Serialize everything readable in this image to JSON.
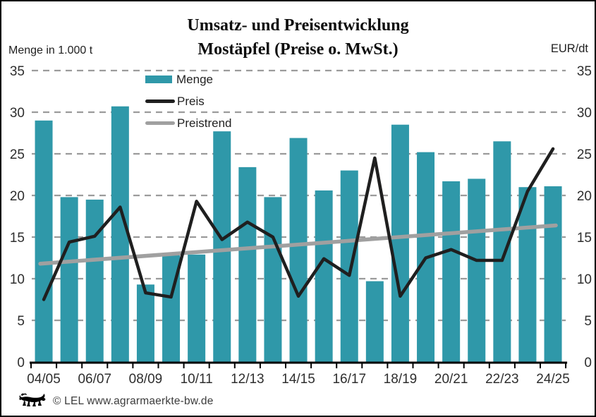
{
  "chart_data": {
    "type": "bar+line",
    "title_line1": "Umsatz- und Preisentwicklung",
    "title_line2": "Mostäpfel (Preise o. MwSt.)",
    "left_axis_label": "Menge in 1.000 t",
    "right_axis_label": "EUR/dt",
    "categories": [
      "04/05",
      "05/06",
      "06/07",
      "07/08",
      "08/09",
      "09/10",
      "10/11",
      "11/12",
      "12/13",
      "13/14",
      "14/15",
      "15/16",
      "16/17",
      "17/18",
      "18/19",
      "19/20",
      "20/21",
      "21/22",
      "22/23",
      "23/24",
      "24/25"
    ],
    "x_tick_labels": [
      "04/05",
      "06/07",
      "08/09",
      "10/11",
      "12/13",
      "14/15",
      "16/17",
      "18/19",
      "20/21",
      "22/23",
      "24/25"
    ],
    "series": [
      {
        "name": "Menge",
        "type": "bar",
        "color": "#2f98a9",
        "values": [
          29.0,
          19.8,
          19.5,
          30.7,
          9.3,
          13.1,
          12.9,
          27.7,
          23.4,
          19.8,
          26.9,
          20.6,
          23.0,
          9.7,
          28.5,
          25.2,
          21.7,
          22.0,
          26.5,
          21.0,
          21.1
        ]
      },
      {
        "name": "Preis",
        "type": "line",
        "color": "#1f1f1f",
        "values": [
          7.5,
          14.4,
          15.1,
          18.6,
          8.3,
          7.8,
          19.3,
          14.7,
          16.8,
          15.0,
          7.9,
          12.4,
          10.4,
          24.5,
          7.9,
          12.5,
          13.5,
          12.2,
          12.2,
          20.5,
          25.6
        ]
      },
      {
        "name": "Preistrend",
        "type": "trendline",
        "color": "#a0a0a0",
        "start": 11.8,
        "end": 16.4
      }
    ],
    "ylim": [
      0,
      35
    ],
    "yticks": [
      0,
      5,
      10,
      15,
      20,
      25,
      30,
      35
    ],
    "grid": "dashed-horizontal",
    "legend_position": "top-left-inside",
    "gridline_color": "#9b9b9b",
    "axis_color": "#000000",
    "tick_label_color": "#2e2e2e"
  },
  "footer": {
    "credit": "© LEL www.agrarmaerkte-bw.de",
    "logo": "baden-wuerttemberg-lion"
  }
}
